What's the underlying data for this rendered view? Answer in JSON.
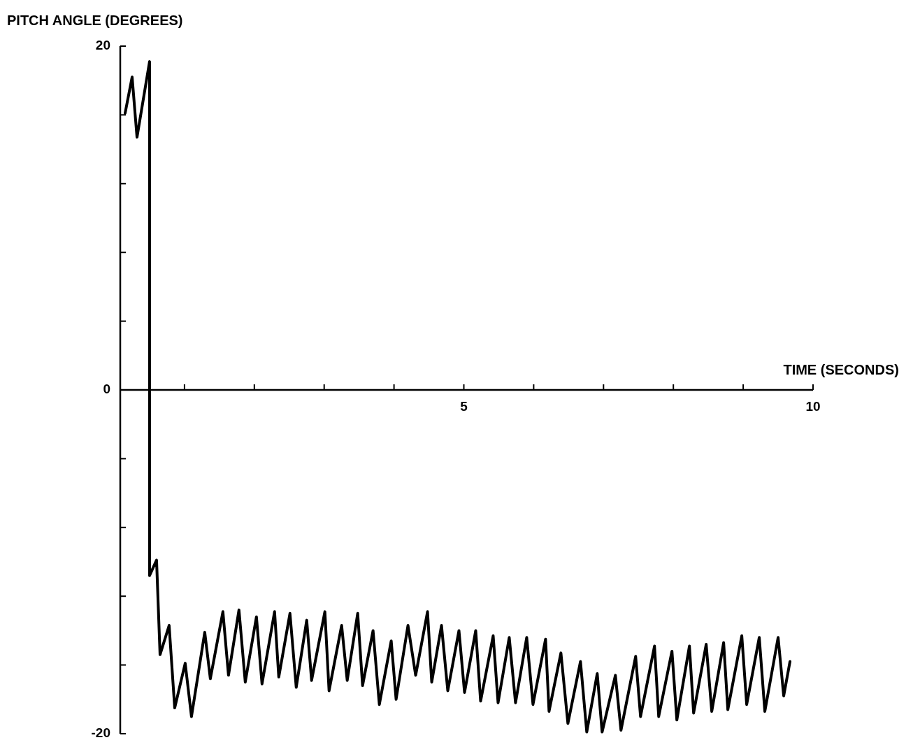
{
  "chart_data": {
    "type": "line",
    "xlabel": "TIME (SECONDS)",
    "ylabel": "PITCH ANGLE (DEGREES)",
    "xlim": [
      0.08,
      10
    ],
    "ylim": [
      -20,
      20
    ],
    "xticks": [
      {
        "value": 0.5,
        "label": null
      },
      {
        "value": 1,
        "label": null
      },
      {
        "value": 2,
        "label": null
      },
      {
        "value": 3,
        "label": null
      },
      {
        "value": 4,
        "label": null
      },
      5,
      {
        "value": 6,
        "label": null
      },
      {
        "value": 7,
        "label": null
      },
      {
        "value": 8,
        "label": null
      },
      {
        "value": 9,
        "label": null
      },
      10
    ],
    "yticks": [
      20,
      {
        "value": 16,
        "label": null
      },
      {
        "value": 12,
        "label": null
      },
      {
        "value": 8,
        "label": null
      },
      {
        "value": 4,
        "label": null
      },
      0,
      {
        "value": -4,
        "label": null
      },
      {
        "value": -8,
        "label": null
      },
      {
        "value": -12,
        "label": null
      },
      {
        "value": -16,
        "label": null
      },
      -20
    ],
    "grid": false,
    "marker": "none",
    "line_style": "solid",
    "series": [
      {
        "color": "#000000",
        "x": [
          0.15,
          0.25,
          0.32,
          0.5,
          0.5,
          0.6,
          0.65,
          0.78,
          0.86,
          1.01,
          1.1,
          1.29,
          1.37,
          1.55,
          1.63,
          1.78,
          1.87,
          2.03,
          2.11,
          2.29,
          2.35,
          2.51,
          2.6,
          2.75,
          2.82,
          3.01,
          3.07,
          3.25,
          3.33,
          3.48,
          3.55,
          3.7,
          3.79,
          3.96,
          4.03,
          4.2,
          4.31,
          4.48,
          4.54,
          4.68,
          4.77,
          4.93,
          5.01,
          5.17,
          5.24,
          5.42,
          5.49,
          5.65,
          5.74,
          5.9,
          5.99,
          6.17,
          6.22,
          6.39,
          6.49,
          6.67,
          6.76,
          6.91,
          6.98,
          7.17,
          7.25,
          7.46,
          7.53,
          7.73,
          7.79,
          7.98,
          8.05,
          8.23,
          8.29,
          8.47,
          8.55,
          8.72,
          8.78,
          8.98,
          9.05,
          9.23,
          9.31,
          9.5,
          9.58,
          9.67
        ],
        "values": [
          16.1,
          18.2,
          14.7,
          19.1,
          -10.8,
          -9.9,
          -15.4,
          -13.7,
          -18.5,
          -15.9,
          -19.0,
          -14.1,
          -16.8,
          -12.9,
          -16.6,
          -12.8,
          -17.0,
          -13.2,
          -17.1,
          -12.9,
          -16.7,
          -13.0,
          -17.3,
          -13.4,
          -16.9,
          -12.9,
          -17.5,
          -13.7,
          -16.9,
          -13.0,
          -17.2,
          -14.0,
          -18.3,
          -14.6,
          -18.0,
          -13.7,
          -16.6,
          -12.9,
          -17.0,
          -13.7,
          -17.5,
          -14.0,
          -17.6,
          -14.0,
          -18.1,
          -14.3,
          -18.2,
          -14.4,
          -18.2,
          -14.4,
          -18.3,
          -14.5,
          -18.7,
          -15.3,
          -19.4,
          -15.8,
          -19.9,
          -16.5,
          -19.9,
          -16.6,
          -19.8,
          -15.5,
          -19.0,
          -14.9,
          -19.0,
          -15.2,
          -19.2,
          -14.9,
          -18.8,
          -14.8,
          -18.7,
          -14.7,
          -18.6,
          -14.3,
          -18.3,
          -14.4,
          -18.7,
          -14.4,
          -17.8,
          -15.8
        ]
      }
    ]
  }
}
